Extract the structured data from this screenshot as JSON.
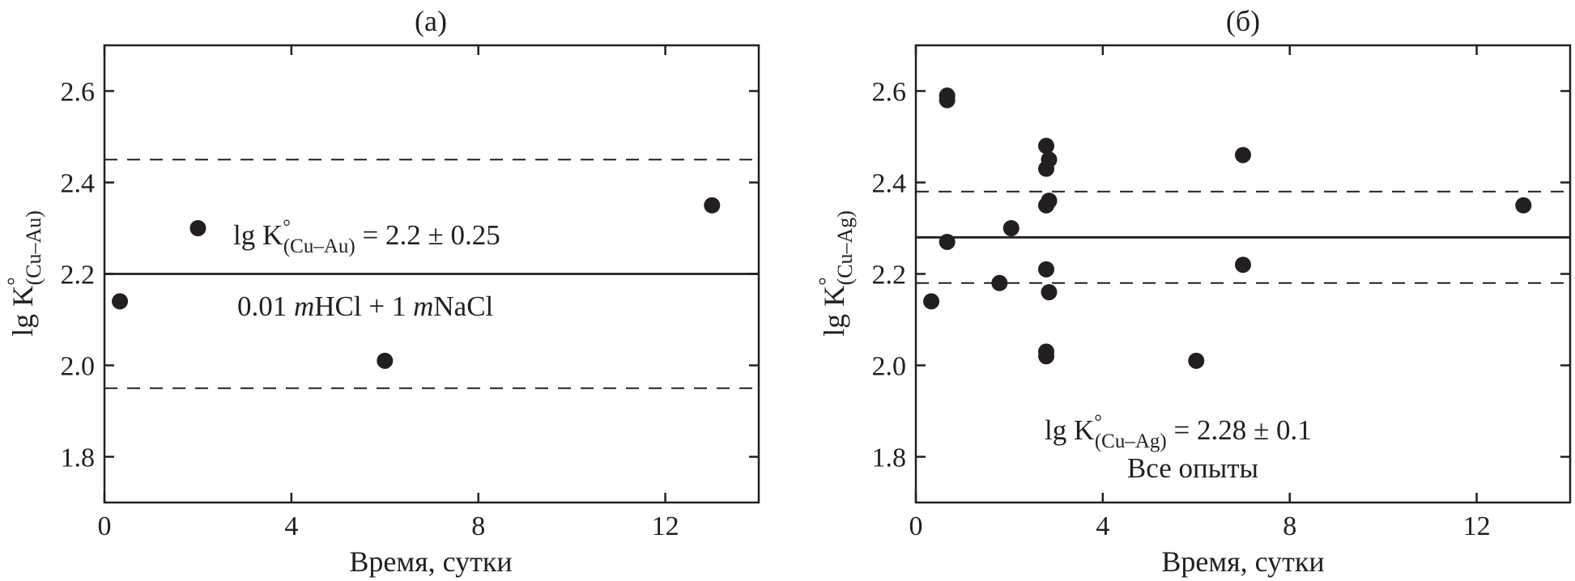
{
  "chart_data": [
    {
      "type": "scatter",
      "title": "(a)",
      "xlabel": "Время, сутки",
      "ylabel": {
        "main": "lg K",
        "degree": "°",
        "subscript": "(Cu–Au)"
      },
      "xlim": [
        0,
        14
      ],
      "ylim": [
        1.7,
        2.7
      ],
      "xticks": [
        "0",
        "4",
        "8",
        "12"
      ],
      "yticks": [
        "1.8",
        "2.0",
        "2.2",
        "2.4",
        "2.6"
      ],
      "x": [
        0.33,
        2.0,
        6.0,
        13.0
      ],
      "y": [
        2.14,
        2.3,
        2.01,
        2.35
      ],
      "mean_line": 2.2,
      "bounds": [
        1.95,
        2.45
      ],
      "annotations": {
        "formula": {
          "prefix": "lg K",
          "degree": "°",
          "subscript": "(Cu–Au)",
          "suffix": " = 2.2 ± 0.25"
        },
        "condition": {
          "part1": "0.01 ",
          "m1": "m",
          "part2": "HCl + 1 ",
          "m2": "m",
          "part3": "NaCl"
        }
      }
    },
    {
      "type": "scatter",
      "title": "(б)",
      "xlabel": "Время, сутки",
      "ylabel": {
        "main": "lg K",
        "degree": "°",
        "subscript": "(Cu–Ag)"
      },
      "xlim": [
        0,
        14
      ],
      "ylim": [
        1.7,
        2.7
      ],
      "xticks": [
        "0",
        "4",
        "8",
        "12"
      ],
      "yticks": [
        "1.8",
        "2.0",
        "2.2",
        "2.4",
        "2.6"
      ],
      "x": [
        0.33,
        0.67,
        0.67,
        0.67,
        1.79,
        2.04,
        2.79,
        2.79,
        2.79,
        2.79,
        2.85,
        2.85,
        2.85,
        2.79,
        2.79,
        2.85,
        6.0,
        7.0,
        7.0,
        13.0
      ],
      "y": [
        2.14,
        2.59,
        2.58,
        2.27,
        2.18,
        2.3,
        2.48,
        2.43,
        2.35,
        2.21,
        2.45,
        2.36,
        2.16,
        2.03,
        2.02,
        2.36,
        2.01,
        2.46,
        2.22,
        2.35
      ],
      "mean_line": 2.28,
      "bounds": [
        2.18,
        2.38
      ],
      "annotations": {
        "formula": {
          "prefix": "lg K",
          "degree": "°",
          "subscript": "(Cu–Ag)",
          "suffix": " = 2.28 ± 0.1"
        },
        "condition": {
          "text": "Все опыты"
        }
      }
    }
  ]
}
